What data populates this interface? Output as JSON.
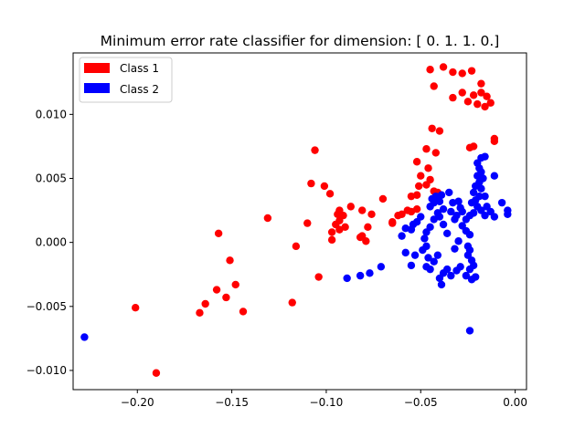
{
  "chart_data": {
    "type": "scatter",
    "title": "Minimum error rate classifier for dimension: [ 0.  1.  1.  0.]",
    "xlabel": "",
    "ylabel": "",
    "xlim": [
      -0.234,
      0.006
    ],
    "ylim": [
      -0.0115,
      0.0148
    ],
    "xticks": [
      -0.2,
      -0.15,
      -0.1,
      -0.05,
      0.0
    ],
    "xtick_labels": [
      "−0.20",
      "−0.15",
      "−0.10",
      "−0.05",
      "0.00"
    ],
    "yticks": [
      -0.01,
      -0.005,
      0.0,
      0.005,
      0.01
    ],
    "ytick_labels": [
      "−0.010",
      "−0.005",
      "0.000",
      "0.005",
      "0.010"
    ],
    "grid": false,
    "legend_position": "top-left",
    "series": [
      {
        "name": "Class 1",
        "color": "#ff0000",
        "points": [
          [
            -0.045,
            0.0135
          ],
          [
            -0.038,
            0.0137
          ],
          [
            -0.033,
            0.0133
          ],
          [
            -0.028,
            0.0132
          ],
          [
            -0.023,
            0.0134
          ],
          [
            -0.043,
            0.0122
          ],
          [
            -0.018,
            0.0124
          ],
          [
            -0.033,
            0.0113
          ],
          [
            -0.028,
            0.0117
          ],
          [
            -0.022,
            0.0115
          ],
          [
            -0.018,
            0.0117
          ],
          [
            -0.015,
            0.0114
          ],
          [
            -0.025,
            0.011
          ],
          [
            -0.02,
            0.0108
          ],
          [
            -0.013,
            0.0109
          ],
          [
            -0.016,
            0.0106
          ],
          [
            -0.044,
            0.0089
          ],
          [
            -0.04,
            0.0087
          ],
          [
            -0.011,
            0.0081
          ],
          [
            -0.011,
            0.0079
          ],
          [
            -0.024,
            0.0074
          ],
          [
            -0.022,
            0.0075
          ],
          [
            -0.047,
            0.0073
          ],
          [
            -0.042,
            0.007
          ],
          [
            -0.052,
            0.0063
          ],
          [
            -0.046,
            0.0058
          ],
          [
            -0.05,
            0.0052
          ],
          [
            -0.045,
            0.0049
          ],
          [
            -0.051,
            0.0044
          ],
          [
            -0.047,
            0.0045
          ],
          [
            -0.043,
            0.004
          ],
          [
            -0.041,
            0.0039
          ],
          [
            -0.052,
            0.0037
          ],
          [
            -0.055,
            0.0036
          ],
          [
            -0.057,
            0.0025
          ],
          [
            -0.052,
            0.0026
          ],
          [
            -0.055,
            0.0024
          ],
          [
            -0.06,
            0.0022
          ],
          [
            -0.062,
            0.0021
          ],
          [
            -0.065,
            0.0016
          ],
          [
            -0.07,
            0.0034
          ],
          [
            -0.065,
            0.0015
          ],
          [
            -0.078,
            0.0012
          ],
          [
            -0.081,
            0.0005
          ],
          [
            -0.082,
            0.0004
          ],
          [
            -0.079,
            0.0001
          ],
          [
            -0.081,
            0.0025
          ],
          [
            -0.087,
            0.0028
          ],
          [
            -0.091,
            0.0021
          ],
          [
            -0.094,
            0.0022
          ],
          [
            -0.093,
            0.0025
          ],
          [
            -0.095,
            0.0014
          ],
          [
            -0.093,
            0.001
          ],
          [
            -0.09,
            0.0012
          ],
          [
            -0.097,
            0.0008
          ],
          [
            -0.093,
            0.0017
          ],
          [
            -0.098,
            0.0038
          ],
          [
            -0.101,
            0.0044
          ],
          [
            -0.108,
            0.0046
          ],
          [
            -0.106,
            0.0072
          ],
          [
            -0.11,
            0.0015
          ],
          [
            -0.097,
            0.0002
          ],
          [
            -0.104,
            -0.0027
          ],
          [
            -0.116,
            -0.0003
          ],
          [
            -0.118,
            -0.0047
          ],
          [
            -0.131,
            0.0019
          ],
          [
            -0.144,
            -0.0054
          ],
          [
            -0.148,
            -0.0033
          ],
          [
            -0.151,
            -0.0014
          ],
          [
            -0.153,
            -0.0043
          ],
          [
            -0.157,
            0.0007
          ],
          [
            -0.158,
            -0.0037
          ],
          [
            -0.164,
            -0.0048
          ],
          [
            -0.167,
            -0.0055
          ],
          [
            -0.201,
            -0.0051
          ],
          [
            -0.19,
            -0.0102
          ],
          [
            -0.076,
            0.0022
          ]
        ]
      },
      {
        "name": "Class 2",
        "color": "#0000ff",
        "points": [
          [
            -0.018,
            0.0066
          ],
          [
            -0.016,
            0.0067
          ],
          [
            -0.02,
            0.0062
          ],
          [
            -0.019,
            0.0058
          ],
          [
            -0.018,
            0.0055
          ],
          [
            -0.02,
            0.0052
          ],
          [
            -0.017,
            0.005
          ],
          [
            -0.019,
            0.0047
          ],
          [
            -0.021,
            0.0044
          ],
          [
            -0.018,
            0.0042
          ],
          [
            -0.022,
            0.0039
          ],
          [
            -0.019,
            0.0036
          ],
          [
            -0.021,
            0.0033
          ],
          [
            -0.023,
            0.0031
          ],
          [
            -0.02,
            0.0028
          ],
          [
            -0.018,
            0.0025
          ],
          [
            -0.022,
            0.0023
          ],
          [
            -0.024,
            0.0021
          ],
          [
            -0.026,
            0.0018
          ],
          [
            -0.016,
            0.0021
          ],
          [
            -0.013,
            0.0024
          ],
          [
            -0.011,
            0.002
          ],
          [
            -0.007,
            0.0031
          ],
          [
            -0.004,
            0.0025
          ],
          [
            -0.004,
            0.0022
          ],
          [
            -0.015,
            0.0028
          ],
          [
            -0.016,
            0.0036
          ],
          [
            -0.011,
            0.0052
          ],
          [
            -0.03,
            0.0032
          ],
          [
            -0.029,
            0.0027
          ],
          [
            -0.028,
            0.0024
          ],
          [
            -0.031,
            0.0021
          ],
          [
            -0.032,
            0.0018
          ],
          [
            -0.028,
            0.0013
          ],
          [
            -0.026,
            0.0009
          ],
          [
            -0.024,
            0.0006
          ],
          [
            -0.025,
            -0.0003
          ],
          [
            -0.024,
            -0.0006
          ],
          [
            -0.025,
            -0.001
          ],
          [
            -0.023,
            -0.0014
          ],
          [
            -0.022,
            -0.0018
          ],
          [
            -0.024,
            -0.0021
          ],
          [
            -0.021,
            -0.0027
          ],
          [
            -0.023,
            -0.0029
          ],
          [
            -0.026,
            -0.0026
          ],
          [
            -0.029,
            -0.0019
          ],
          [
            -0.031,
            -0.0022
          ],
          [
            -0.034,
            -0.0026
          ],
          [
            -0.036,
            -0.0021
          ],
          [
            -0.038,
            -0.0024
          ],
          [
            -0.04,
            -0.0028
          ],
          [
            -0.039,
            -0.0033
          ],
          [
            -0.036,
            0.0007
          ],
          [
            -0.038,
            0.0014
          ],
          [
            -0.04,
            0.002
          ],
          [
            -0.038,
            0.0026
          ],
          [
            -0.04,
            0.0032
          ],
          [
            -0.039,
            0.0037
          ],
          [
            -0.042,
            0.0036
          ],
          [
            -0.044,
            0.0034
          ],
          [
            -0.043,
            0.0031
          ],
          [
            -0.045,
            0.0028
          ],
          [
            -0.041,
            0.0023
          ],
          [
            -0.043,
            0.0018
          ],
          [
            -0.045,
            0.0012
          ],
          [
            -0.047,
            0.0008
          ],
          [
            -0.048,
            0.0003
          ],
          [
            -0.047,
            -0.0003
          ],
          [
            -0.049,
            -0.0006
          ],
          [
            -0.046,
            -0.0012
          ],
          [
            -0.047,
            -0.0019
          ],
          [
            -0.045,
            -0.0021
          ],
          [
            -0.043,
            -0.0015
          ],
          [
            -0.041,
            -0.001
          ],
          [
            -0.05,
            0.002
          ],
          [
            -0.052,
            0.0016
          ],
          [
            -0.054,
            0.0014
          ],
          [
            -0.055,
            0.001
          ],
          [
            -0.058,
            0.0011
          ],
          [
            -0.06,
            0.0005
          ],
          [
            -0.058,
            -0.0008
          ],
          [
            -0.053,
            -0.001
          ],
          [
            -0.055,
            -0.0018
          ],
          [
            -0.035,
            0.0039
          ],
          [
            -0.033,
            0.0031
          ],
          [
            -0.034,
            0.0024
          ],
          [
            -0.03,
            0.0001
          ],
          [
            -0.032,
            -0.0005
          ],
          [
            -0.071,
            -0.0019
          ],
          [
            -0.077,
            -0.0024
          ],
          [
            -0.082,
            -0.0026
          ],
          [
            -0.089,
            -0.0028
          ],
          [
            -0.024,
            -0.0069
          ],
          [
            -0.228,
            -0.0074
          ]
        ]
      }
    ]
  }
}
